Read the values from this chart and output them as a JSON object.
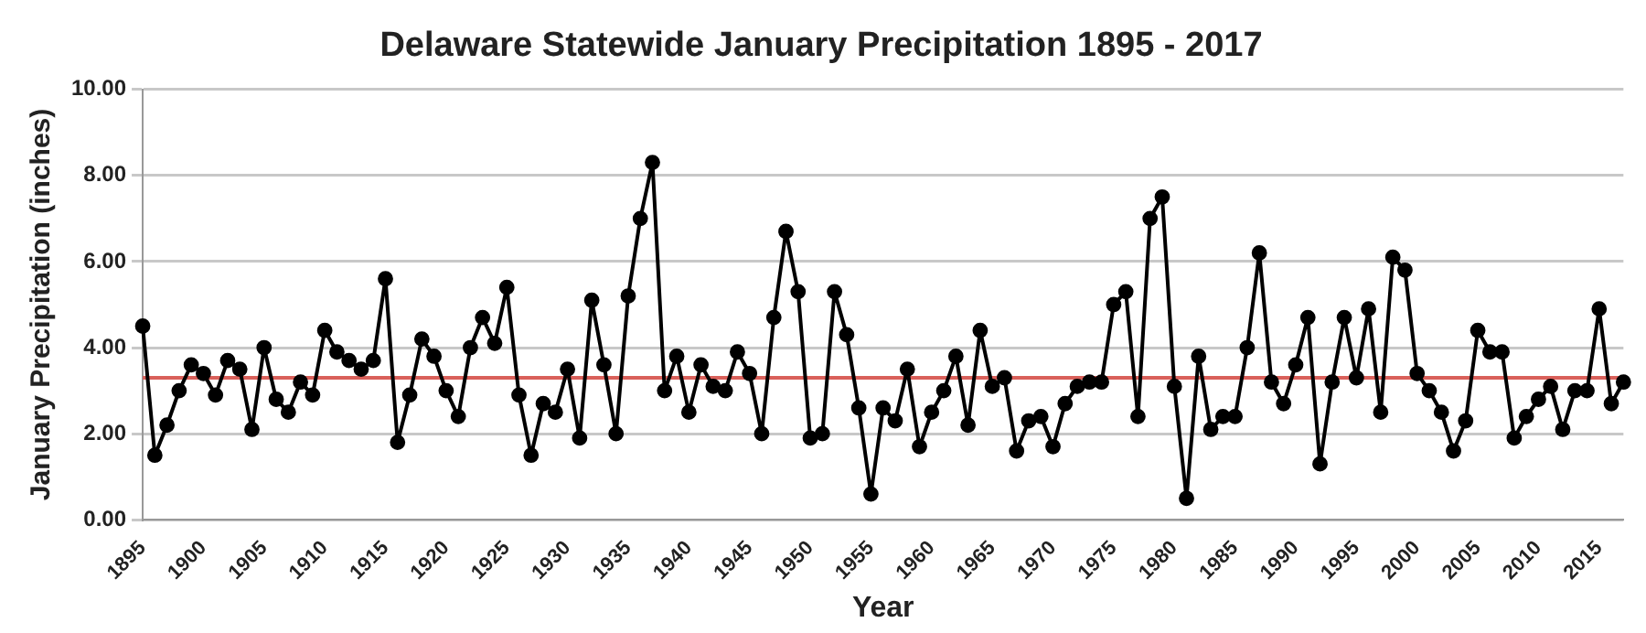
{
  "chart_data": {
    "type": "line",
    "title": "Delaware Statewide January Precipitation 1895 - 2017",
    "xlabel": "Year",
    "ylabel": "January Precipitation (inches)",
    "categories": [
      "1895",
      null,
      null,
      null,
      null,
      "1900",
      null,
      null,
      null,
      null,
      "1905",
      null,
      null,
      null,
      null,
      "1910",
      null,
      null,
      null,
      null,
      "1915",
      null,
      null,
      null,
      null,
      "1920",
      null,
      null,
      null,
      null,
      "1925",
      null,
      null,
      null,
      null,
      "1930",
      null,
      null,
      null,
      null,
      "1935",
      null,
      null,
      null,
      null,
      "1940",
      null,
      null,
      null,
      null,
      "1945",
      null,
      null,
      null,
      null,
      "1950",
      null,
      null,
      null,
      null,
      "1955",
      null,
      null,
      null,
      null,
      "1960",
      null,
      null,
      null,
      null,
      "1965",
      null,
      null,
      null,
      null,
      "1970",
      null,
      null,
      null,
      null,
      "1975",
      null,
      null,
      null,
      null,
      "1980",
      null,
      null,
      null,
      null,
      "1985",
      null,
      null,
      null,
      null,
      "1990",
      null,
      null,
      null,
      null,
      "1995",
      null,
      null,
      null,
      null,
      "2000",
      null,
      null,
      null,
      null,
      "2005",
      null,
      null,
      null,
      null,
      "2010",
      null,
      null,
      null,
      null,
      "2015",
      null,
      null
    ],
    "series": [
      {
        "color": "#000000",
        "values": [
          4.5,
          1.5,
          2.2,
          3.0,
          3.6,
          3.4,
          2.9,
          3.7,
          3.5,
          2.1,
          4.0,
          2.8,
          2.5,
          3.2,
          2.9,
          4.4,
          3.9,
          3.7,
          3.5,
          3.7,
          5.6,
          1.8,
          2.9,
          4.2,
          3.8,
          3.0,
          2.4,
          4.0,
          4.7,
          4.1,
          5.4,
          2.9,
          1.5,
          2.7,
          2.5,
          3.5,
          1.9,
          5.1,
          3.6,
          2.0,
          5.2,
          7.0,
          8.3,
          3.0,
          3.8,
          2.5,
          3.6,
          3.1,
          3.0,
          3.9,
          3.4,
          2.0,
          4.7,
          6.7,
          5.3,
          1.9,
          2.0,
          5.3,
          4.3,
          2.6,
          0.6,
          2.6,
          2.3,
          3.5,
          1.7,
          2.5,
          3.0,
          3.8,
          2.2,
          4.4,
          3.1,
          3.3,
          1.6,
          2.3,
          2.4,
          1.7,
          2.7,
          3.1,
          3.2,
          3.2,
          5.0,
          5.3,
          2.4,
          7.0,
          7.5,
          3.1,
          0.5,
          3.8,
          2.1,
          2.4,
          2.4,
          4.0,
          6.2,
          3.2,
          2.7,
          3.6,
          4.7,
          1.3,
          3.2,
          4.7,
          3.3,
          4.9,
          2.5,
          6.1,
          5.8,
          3.4,
          3.0,
          2.5,
          1.6,
          2.3,
          4.4,
          3.9,
          3.9,
          1.9,
          2.4,
          2.8,
          3.1,
          2.1,
          3.0,
          3.0,
          4.9,
          2.7,
          3.2
        ]
      }
    ],
    "ylim": [
      0,
      10
    ],
    "yticks": [
      {
        "value": 0,
        "label": "0.00"
      },
      {
        "value": 2,
        "label": "2.00"
      },
      {
        "value": 4,
        "label": "4.00"
      },
      {
        "value": 6,
        "label": "6.00"
      },
      {
        "value": 8,
        "label": "8.00"
      },
      {
        "value": 10,
        "label": "10.00"
      }
    ],
    "ref_lines": [
      {
        "axis": "y",
        "value": 3.3,
        "color": "#d9605a"
      }
    ],
    "grid": "y",
    "legend": false,
    "marker": "circle",
    "line_style": "solid"
  }
}
